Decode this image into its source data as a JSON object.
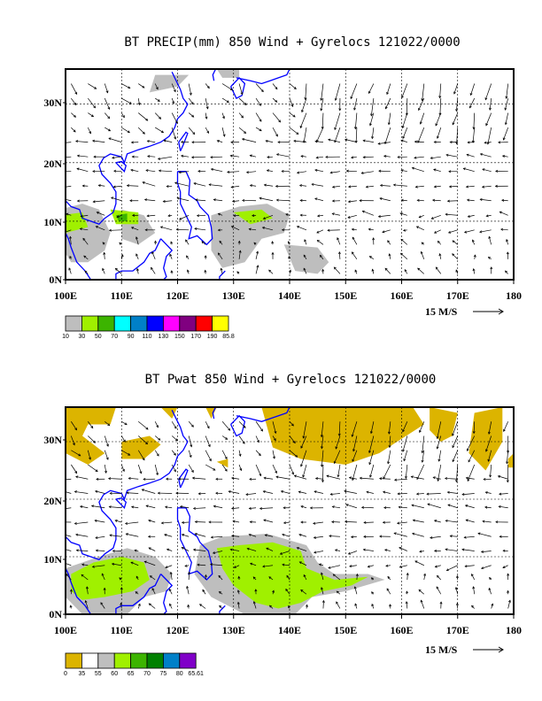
{
  "panels": [
    {
      "title": "BT PRECIP(mm) 850 Wind + Gyrelocs 121022/0000",
      "lat_labels": [
        "30N",
        "20N",
        "10N",
        "0N"
      ],
      "lon_labels": [
        "100E",
        "110E",
        "120E",
        "130E",
        "140E",
        "150E",
        "160E",
        "170E",
        "180"
      ],
      "vector_scale": "15 M/S",
      "colorbar_labels": [
        "10",
        "30",
        "50",
        "70",
        "90",
        "110",
        "130",
        "150",
        "170",
        "190",
        "85.8"
      ],
      "colorbar_colors": [
        "#bebebe",
        "#a0f000",
        "#3cb400",
        "#00ffff",
        "#0080c8",
        "#0000ff",
        "#ff00ff",
        "#800080",
        "#ff0000",
        "#ffff00"
      ]
    },
    {
      "title": "BT Pwat 850 Wind + Gyrelocs 121022/0000",
      "lat_labels": [
        "30N",
        "20N",
        "10N",
        "0N"
      ],
      "lon_labels": [
        "100E",
        "110E",
        "120E",
        "130E",
        "140E",
        "150E",
        "160E",
        "170E",
        "180"
      ],
      "vector_scale": "15 M/S",
      "colorbar_labels": [
        "0",
        "35",
        "55",
        "60",
        "65",
        "70",
        "75",
        "80",
        "65.61"
      ],
      "colorbar_colors": [
        "#dcb400",
        "#ffffff",
        "#bebebe",
        "#a0f000",
        "#3cb400",
        "#008000",
        "#0080c8",
        "#8000c8"
      ]
    }
  ],
  "colors": {
    "coastline": "#0000ff",
    "frame": "#000000"
  }
}
